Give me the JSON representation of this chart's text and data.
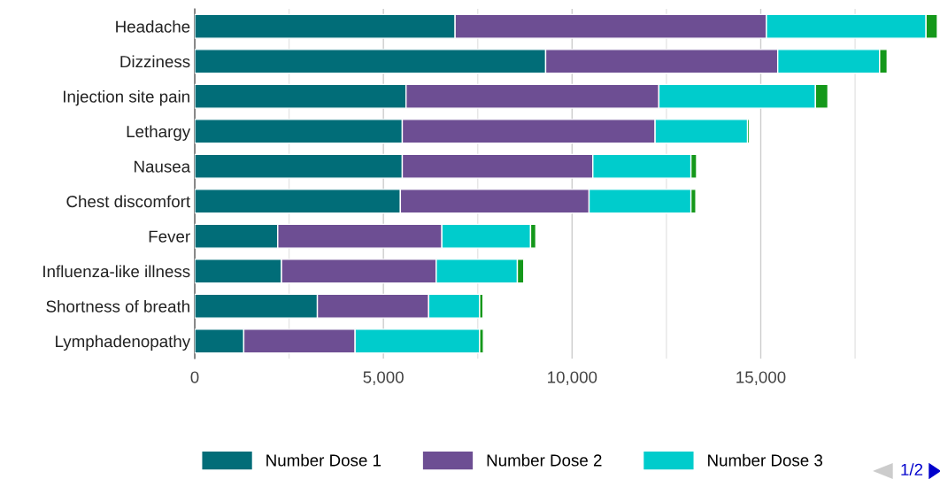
{
  "chart_data": {
    "type": "bar",
    "orientation": "horizontal",
    "stacked": true,
    "categories": [
      "Headache",
      "Dizziness",
      "Injection site pain",
      "Lethargy",
      "Nausea",
      "Chest discomfort",
      "Fever",
      "Influenza-like illness",
      "Shortness of breath",
      "Lymphadenopathy"
    ],
    "series": [
      {
        "name": "Number Dose 1",
        "color": "#016d78",
        "values": [
          6900,
          9300,
          5600,
          5500,
          5500,
          5450,
          2200,
          2300,
          3250,
          1300
        ]
      },
      {
        "name": "Number Dose 2",
        "color": "#6d4e93",
        "values": [
          8250,
          6150,
          6700,
          6700,
          5050,
          5000,
          4350,
          4100,
          2950,
          2950
        ]
      },
      {
        "name": "Number Dose 3",
        "color": "#00cccc",
        "values": [
          4230,
          2700,
          4150,
          2450,
          2600,
          2700,
          2350,
          2150,
          1350,
          3300
        ]
      },
      {
        "color": "#14981a",
        "values": [
          300,
          200,
          330,
          50,
          150,
          130,
          140,
          170,
          90,
          100
        ]
      }
    ],
    "xlim": [
      0,
      19750
    ],
    "xticks": [
      0,
      {
        "value": 2500,
        "label": null
      },
      {
        "value": 5000,
        "label": "5,000"
      },
      {
        "value": 7500,
        "label": null
      },
      {
        "value": 10000,
        "label": "10,000"
      },
      {
        "value": 12500,
        "label": null
      },
      {
        "value": 15000,
        "label": "15,000"
      },
      {
        "value": 17500,
        "label": null
      }
    ],
    "grid": "x",
    "legend": "bottom",
    "annotations": [
      "1/2"
    ]
  }
}
